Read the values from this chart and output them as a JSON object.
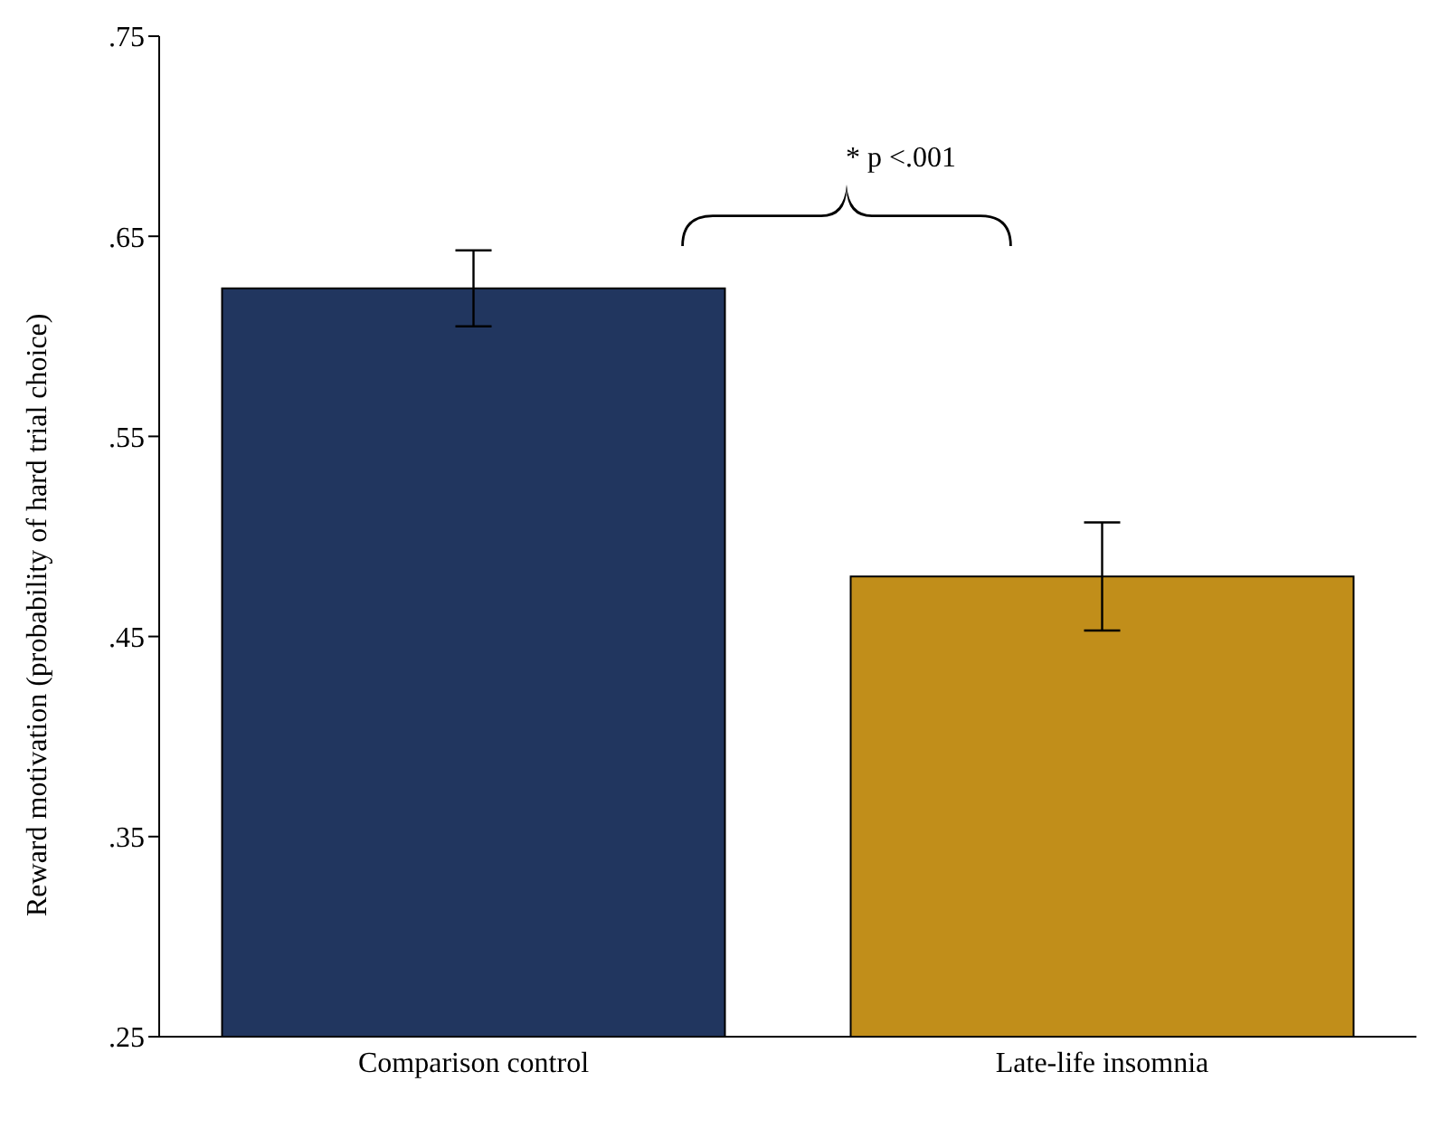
{
  "chart_data": {
    "type": "bar",
    "ylabel": "Reward motivation (probability of hard trial choice)",
    "categories": [
      "Comparison control",
      "Late-life insomnia"
    ],
    "values": [
      0.624,
      0.48
    ],
    "errors": [
      0.019,
      0.027
    ],
    "colors": [
      "#21365f",
      "#c18e1a"
    ],
    "ylim": [
      0.25,
      0.75
    ],
    "yticks": [
      {
        "value": 0.25,
        "label": ".25"
      },
      {
        "value": 0.35,
        "label": ".35"
      },
      {
        "value": 0.45,
        "label": ".45"
      },
      {
        "value": 0.55,
        "label": ".55"
      },
      {
        "value": 0.65,
        "label": ".65"
      },
      {
        "value": 0.75,
        "label": ".75"
      }
    ],
    "annotations": [
      "* p <.001"
    ],
    "grid": false,
    "legend": false
  }
}
